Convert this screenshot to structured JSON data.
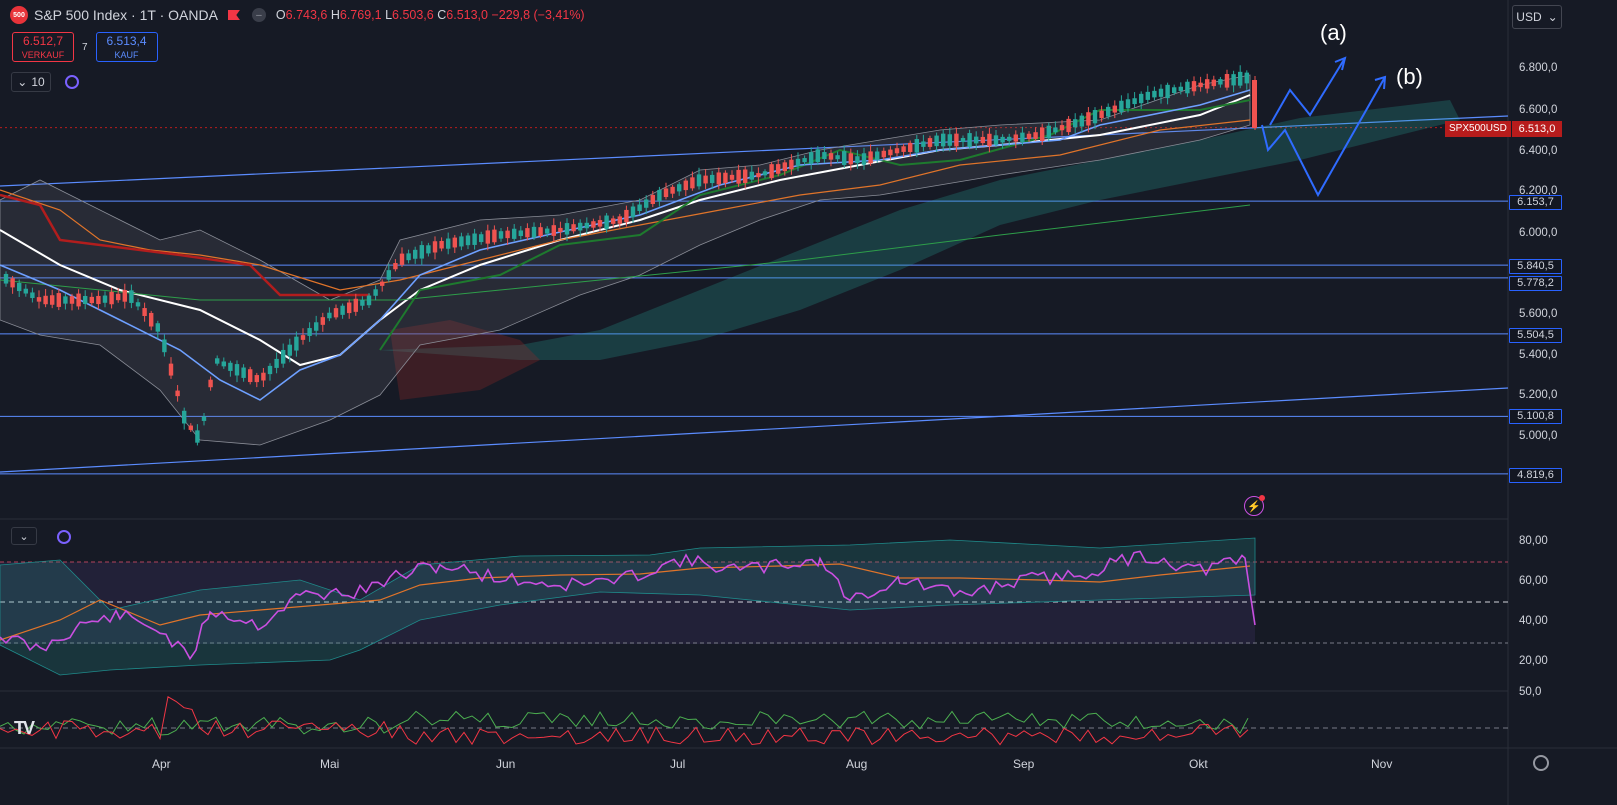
{
  "header": {
    "logo": "500",
    "symbol": "S&P 500 Index · 1T · OANDA",
    "ohlc": {
      "o_label": "O",
      "o": "6.743,6",
      "h_label": "H",
      "h": "6.769,1",
      "l_label": "L",
      "l": "6.503,6",
      "c_label": "C",
      "c": "6.513,0",
      "change": "−229,8 (−3,41%)"
    }
  },
  "trade": {
    "sell_price": "6.512,7",
    "sell_label": "VERKAUF",
    "spread": "7",
    "buy_price": "6.513,4",
    "buy_label": "KAUF"
  },
  "indicator_collapse": "10",
  "currency": "USD",
  "current_price": {
    "tag": "SPX500USD",
    "value": "6.513,0",
    "color": "#b71c1c"
  },
  "price_axis": [
    "6.800,0",
    "6.600,0",
    "6.400,0",
    "6.200,0",
    "6.000,0",
    "5.600,0",
    "5.400,0",
    "5.200,0",
    "5.000,0"
  ],
  "levels": [
    "6.153,7",
    "5.840,5",
    "5.778,2",
    "5.504,5",
    "5.100,8",
    "4.819,6"
  ],
  "rsi_axis": [
    "80,00",
    "60,00",
    "40,00",
    "20,00"
  ],
  "bottom_axis": [
    "50,0"
  ],
  "months": [
    "Apr",
    "Mai",
    "Jun",
    "Jul",
    "Aug",
    "Sep",
    "Okt",
    "Nov"
  ],
  "wave_labels": [
    "(a)",
    "(b)"
  ],
  "chart_data": {
    "type": "candlestick",
    "title": "S&P 500 Index · 1T · OANDA",
    "last_close": 6513.0,
    "horizontal_levels": [
      6153.7,
      5840.5,
      5778.2,
      5504.5,
      5100.8,
      4819.6
    ]
  }
}
